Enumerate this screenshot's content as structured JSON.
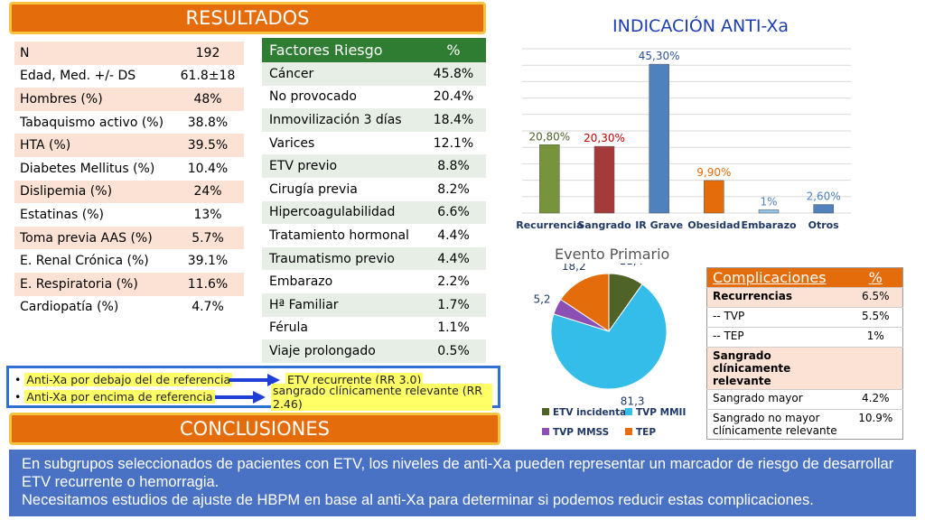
{
  "resultados": {
    "title": "RESULTADOS"
  },
  "demographics": [
    {
      "label": "N",
      "value": "192"
    },
    {
      "label": "Edad, Med. +/- DS",
      "value": "61.8±18"
    },
    {
      "label": "Hombres (%)",
      "value": "48%"
    },
    {
      "label": "Tabaquismo activo (%)",
      "value": "38.8%"
    },
    {
      "label": "HTA (%)",
      "value": "39.5%"
    },
    {
      "label": "Diabetes Mellitus (%)",
      "value": "10.4%"
    },
    {
      "label": "Dislipemia (%)",
      "value": "24%"
    },
    {
      "label": "Estatinas (%)",
      "value": "13%"
    },
    {
      "label": "Toma previa AAS (%)",
      "value": "5.7%"
    },
    {
      "label": "E. Renal Crónica (%)",
      "value": "39.1%"
    },
    {
      "label": "E. Respiratoria (%)",
      "value": "11.6%"
    },
    {
      "label": "Cardiopatía (%)",
      "value": "4.7%"
    }
  ],
  "risk_factors": {
    "header_label": "Factores Riesgo",
    "header_value": "%",
    "rows": [
      {
        "label": "Cáncer",
        "value": "45.8%"
      },
      {
        "label": "No provocado",
        "value": "20.4%"
      },
      {
        "label": "Inmovilización 3 días",
        "value": "18.4%"
      },
      {
        "label": "Varices",
        "value": "12.1%"
      },
      {
        "label": "ETV previo",
        "value": "8.8%"
      },
      {
        "label": "Cirugía previa",
        "value": "8.2%"
      },
      {
        "label": "Hipercoagulabilidad",
        "value": "6.6%"
      },
      {
        "label": "Tratamiento hormonal",
        "value": "4.4%"
      },
      {
        "label": "Traumatismo previo",
        "value": "4.4%"
      },
      {
        "label": "Embarazo",
        "value": "2.2%"
      },
      {
        "label": "Hª Familiar",
        "value": "1.7%"
      },
      {
        "label": "Férula",
        "value": "1.1%"
      },
      {
        "label": "Viaje prolongado",
        "value": "0.5%"
      }
    ]
  },
  "notes": [
    {
      "left": "Anti-Xa por debajo del de referencia",
      "right": "ETV recurrente (RR 3.0)"
    },
    {
      "left": "Anti-Xa por encima de referencia",
      "right": "sangrado clínicamente relevante (RR 2.46)"
    }
  ],
  "conclusiones": {
    "title": "CONCLUSIONES",
    "line1": "En subgrupos seleccionados de pacientes con ETV, los niveles de anti-Xa pueden representar un marcador de riesgo de desarrollar ETV recurrente o hemorragia.",
    "line2": "Necesitamos estudios de ajuste de HBPM en base al anti-Xa para determinar si podemos reducir estas complicaciones."
  },
  "colors": {
    "orange": "#e46c0a",
    "green": "#2e7d32",
    "blue": "#4a72c4"
  },
  "chart_data": [
    {
      "type": "bar",
      "title": "INDICACIÓN ANTI-Xa",
      "categories": [
        "Recurrencia",
        "Sangrado",
        "IR Grave",
        "Obesidad",
        "Embarazo",
        "Otros"
      ],
      "values": [
        20.8,
        20.3,
        45.3,
        9.9,
        1,
        2.6
      ],
      "data_labels": [
        "20,80%",
        "20,30%",
        "45,30%",
        "9,90%",
        "1%",
        "2,60%"
      ],
      "colors": [
        "#77933c",
        "#a33b3b",
        "#4f81bd",
        "#e46c0a",
        "#92c5e8",
        "#4f81bd"
      ],
      "label_colors": [
        "#4f6228",
        "#c00000",
        "#2f5597",
        "#e46c0a",
        "#4f81bd",
        "#4f81bd"
      ],
      "ylim": [
        0,
        50
      ],
      "grid": true
    },
    {
      "type": "pie",
      "title": "Evento Primario",
      "labels": [
        "ETV incidental",
        "TVP MMII",
        "TVP MMSS",
        "TEP"
      ],
      "values": [
        11.4,
        81.3,
        5.2,
        18.2
      ],
      "data_labels": [
        "11,4",
        "81,3",
        "5,2",
        "18,2"
      ],
      "colors": [
        "#4f6228",
        "#33bde8",
        "#8c4fb3",
        "#e46c0a"
      ],
      "legend": "bottom"
    }
  ],
  "complications": {
    "header_label": "Complicaciones",
    "header_value": "%",
    "rows": [
      {
        "label": "Recurrencias",
        "value": "6.5%"
      },
      {
        "label": "-- TVP",
        "value": "5.5%"
      },
      {
        "label": "-- TEP",
        "value": "1%"
      },
      {
        "label": "Sangrado clínicamente relevante",
        "value": ""
      },
      {
        "label": "Sangrado mayor",
        "value": "4.2%"
      },
      {
        "label": "Sangrado no mayor clínicamente relevante",
        "value": "10.9%"
      }
    ]
  }
}
